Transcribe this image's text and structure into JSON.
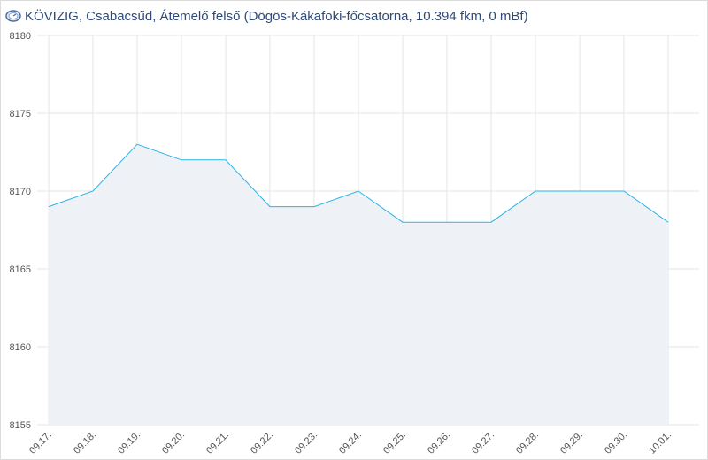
{
  "header": {
    "icon": "gauge-icon",
    "title": "KÖVIZIG, Csabacsűd, Átemelő felső (Dögös-Kákafoki-főcsatorna, 10.394 fkm, 0 mBf)"
  },
  "colors": {
    "line": "#2ab4e6",
    "area": "#eef1f6",
    "grid": "#e6e6e6",
    "title": "#2f4a7a"
  },
  "chart_data": {
    "type": "area",
    "title": "",
    "xlabel": "",
    "ylabel": "",
    "grid": true,
    "categories": [
      "09.17.",
      "09.18.",
      "09.19.",
      "09.20.",
      "09.21.",
      "09.22.",
      "09.23.",
      "09.24.",
      "09.25.",
      "09.26.",
      "09.27.",
      "09.28.",
      "09.29.",
      "09.30.",
      "10.01."
    ],
    "values": [
      8169,
      8170,
      8173,
      8172,
      8172,
      8169,
      8169,
      8170,
      8168,
      8168,
      8168,
      8170,
      8170,
      8170,
      8168
    ],
    "ylim": [
      8155,
      8180
    ],
    "yticks": [
      8155,
      8160,
      8165,
      8170,
      8175,
      8180
    ]
  }
}
